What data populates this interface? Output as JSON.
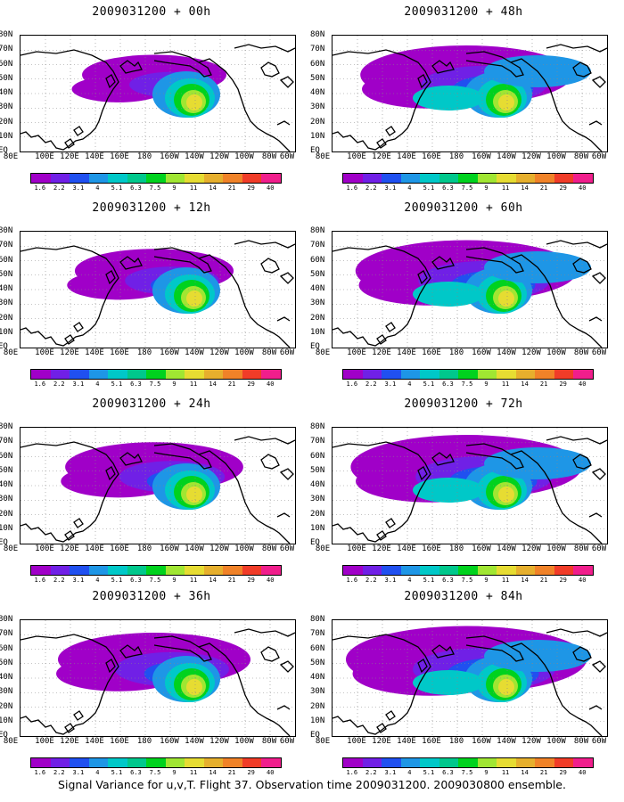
{
  "panels": [
    {
      "title": "2009031200 + 00h"
    },
    {
      "title": "2009031200 + 48h"
    },
    {
      "title": "2009031200 + 12h"
    },
    {
      "title": "2009031200 + 60h"
    },
    {
      "title": "2009031200 + 24h"
    },
    {
      "title": "2009031200 + 72h"
    },
    {
      "title": "2009031200 + 36h"
    },
    {
      "title": "2009031200 + 84h"
    }
  ],
  "lat_labels": [
    "80N",
    "70N",
    "60N",
    "50N",
    "40N",
    "30N",
    "20N",
    "10N",
    "EQ"
  ],
  "lon_labels": [
    "80E",
    "100E",
    "120E",
    "140E",
    "160E",
    "180",
    "160W",
    "140W",
    "120W",
    "100W",
    "80W",
    "60W"
  ],
  "colorbar": {
    "labels": [
      "1.6",
      "2.2",
      "3.1",
      "4",
      "5.1",
      "6.3",
      "7.5",
      "9",
      "11",
      "14",
      "21",
      "29",
      "40"
    ],
    "colors": [
      "#a000c8",
      "#7020e6",
      "#2050f0",
      "#1e96e6",
      "#00c8c8",
      "#00c88c",
      "#00d21e",
      "#a0e632",
      "#e6dc32",
      "#e6af2d",
      "#f08228",
      "#f03c28",
      "#f01e8c"
    ]
  },
  "caption": "Signal Variance for u,v,T. Flight 37. Observation time 2009031200. 2009030800 ensemble."
}
